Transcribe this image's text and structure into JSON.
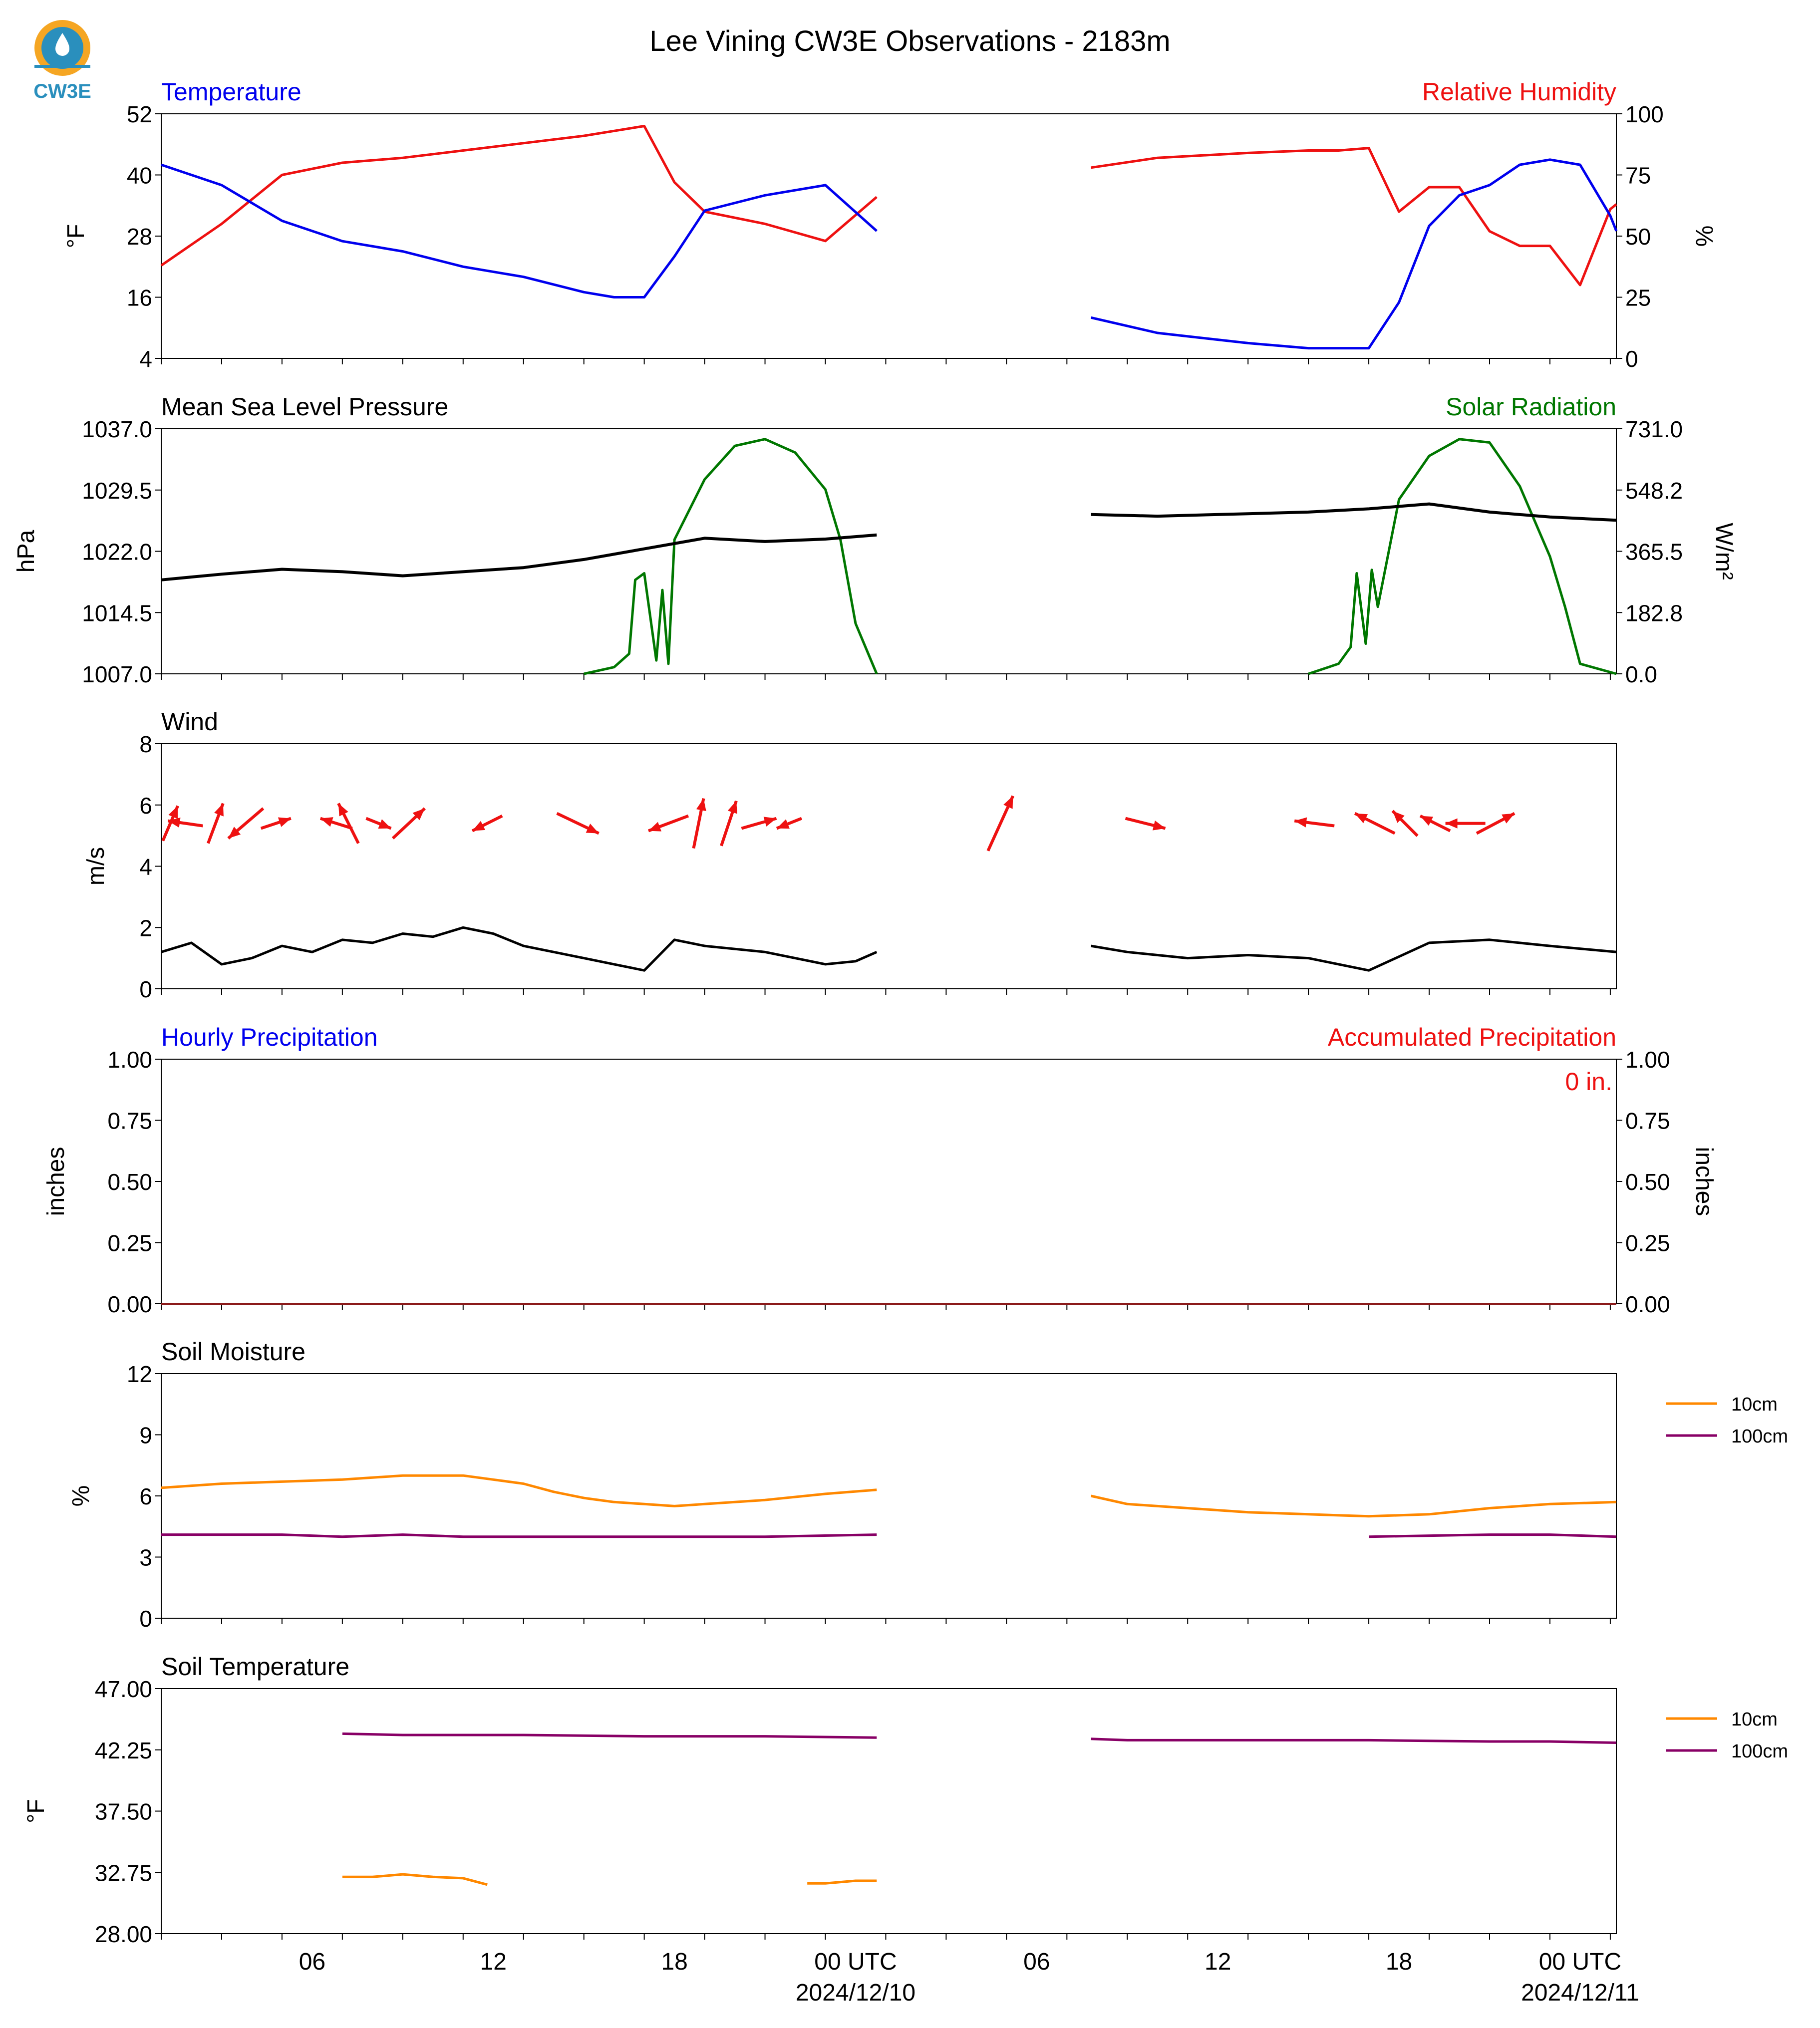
{
  "title": "Lee Vining CW3E Observations - 2183m",
  "logo_text": "CW3E",
  "x_axis": {
    "tick_labels": [
      "06",
      "12",
      "18",
      "00 UTC",
      "06",
      "12",
      "18",
      "00 UTC"
    ],
    "date_labels": [
      "2024/12/10",
      "2024/12/11"
    ]
  },
  "colors": {
    "temperature": "#0000ee",
    "humidity": "#ee1111",
    "pressure": "#000000",
    "solar": "#007700",
    "wind": "#000000",
    "wind_arrow": "#ee1111",
    "soil_10cm": "#ff8800",
    "soil_100cm": "#880066"
  },
  "chart_data": [
    {
      "type": "line",
      "title_left": "Temperature",
      "title_right": "Relative Humidity",
      "ylabel_left": "°F",
      "ylabel_right": "%",
      "ylim_left": [
        4,
        52
      ],
      "yticks_left": [
        "52",
        "40",
        "28",
        "16",
        "4"
      ],
      "ylim_right": [
        0,
        100
      ],
      "yticks_right": [
        "100",
        "75",
        "50",
        "25",
        "0"
      ],
      "x_hours": [
        0,
        2,
        4,
        6,
        8,
        10,
        12,
        14,
        15,
        16,
        17,
        18,
        20,
        22,
        23.7,
        30.8,
        33,
        36,
        38,
        39,
        40,
        41,
        42,
        43,
        44,
        45,
        46,
        47,
        48,
        48.2
      ],
      "series": [
        {
          "name": "Temperature",
          "values": [
            42,
            38,
            31,
            27,
            25,
            22,
            20,
            17,
            16,
            16,
            24,
            33,
            36,
            38,
            29,
            12,
            9,
            7,
            6,
            6,
            6,
            15,
            30,
            36,
            38,
            42,
            43,
            42,
            32,
            29
          ]
        },
        {
          "name": "Relative Humidity",
          "values": [
            38,
            55,
            75,
            80,
            82,
            85,
            88,
            91,
            93,
            95,
            72,
            60,
            55,
            48,
            66,
            78,
            82,
            84,
            85,
            85,
            86,
            60,
            70,
            70,
            52,
            46,
            46,
            30,
            61,
            63
          ]
        }
      ]
    },
    {
      "type": "line",
      "title_left": "Mean Sea Level Pressure",
      "title_right": "Solar Radiation",
      "ylabel_left": "hPa",
      "ylabel_right": "W/m²",
      "ylim_left": [
        1007.0,
        1037.0
      ],
      "yticks_left": [
        "1037.0",
        "1029.5",
        "1022.0",
        "1014.5",
        "1007.0"
      ],
      "ylim_right": [
        0.0,
        731.0
      ],
      "yticks_right": [
        "731.0",
        "548.2",
        "365.5",
        "182.8",
        "0.0"
      ],
      "pressure": {
        "name": "Mean Sea Level Pressure",
        "x_hours": [
          0,
          2,
          4,
          6,
          8,
          10,
          12,
          14,
          16,
          18,
          20,
          22,
          23.7,
          30.8,
          33,
          36,
          38,
          40,
          42,
          44,
          46,
          48.2
        ],
        "values": [
          1018.5,
          1019.2,
          1019.8,
          1019.5,
          1019.0,
          1019.5,
          1020.0,
          1021.0,
          1022.3,
          1023.6,
          1023.2,
          1023.5,
          1024.0,
          1026.5,
          1026.3,
          1026.6,
          1026.8,
          1027.2,
          1027.8,
          1026.8,
          1026.2,
          1025.8
        ]
      },
      "solar": {
        "name": "Solar Radiation",
        "x_hours": [
          0,
          14,
          15,
          15.5,
          15.7,
          16,
          16.4,
          16.6,
          16.8,
          17,
          18,
          19,
          20,
          21,
          22,
          22.5,
          23,
          23.7,
          30.8,
          38,
          39,
          39.4,
          39.6,
          39.9,
          40.1,
          40.3,
          41,
          42,
          43,
          44,
          45,
          46,
          46.5,
          47,
          48.2
        ],
        "values": [
          0,
          0,
          20,
          60,
          280,
          300,
          40,
          250,
          30,
          400,
          580,
          680,
          700,
          660,
          550,
          400,
          150,
          0,
          0,
          0,
          30,
          80,
          300,
          90,
          310,
          200,
          520,
          650,
          700,
          690,
          560,
          350,
          200,
          30,
          0
        ]
      }
    },
    {
      "type": "line",
      "title_left": "Wind",
      "ylabel_left": "m/s",
      "ylim_left": [
        0,
        8
      ],
      "yticks_left": [
        "8",
        "6",
        "4",
        "2",
        "0"
      ],
      "speed": {
        "name": "Wind",
        "x_hours": [
          0,
          1,
          2,
          3,
          4,
          5,
          6,
          7,
          8,
          9,
          10,
          11,
          12,
          13,
          14,
          15,
          16,
          17,
          18,
          19,
          20,
          21,
          22,
          23,
          23.7,
          30.8,
          32,
          34,
          36,
          38,
          40,
          42,
          44,
          46,
          48.2
        ],
        "values": [
          1.2,
          1.5,
          0.8,
          1.0,
          1.4,
          1.2,
          1.6,
          1.5,
          1.8,
          1.7,
          2.0,
          1.8,
          1.4,
          1.2,
          1.0,
          0.8,
          0.6,
          1.6,
          1.4,
          1.3,
          1.2,
          1.0,
          0.8,
          0.9,
          1.2,
          1.4,
          1.2,
          1.0,
          1.1,
          1.0,
          0.6,
          1.5,
          1.6,
          1.4,
          1.2
        ]
      },
      "arrows": {
        "x_hours": [
          0.3,
          0.8,
          1.8,
          2.8,
          3.8,
          5.8,
          6.2,
          7.2,
          8.2,
          10.8,
          13.8,
          16.8,
          17.8,
          18.8,
          19.8,
          20.8,
          27.8,
          32.6,
          38.2,
          40.2,
          41.2,
          42.2,
          43.2,
          44.2
        ],
        "u": [
          1.5,
          -3.5,
          1.5,
          -3.5,
          3.0,
          -3.2,
          -2.0,
          2.5,
          3.2,
          -3.0,
          4.2,
          -4.0,
          1.0,
          1.5,
          3.5,
          -2.5,
          2.5,
          4.0,
          -4.0,
          -4.0,
          -2.5,
          -3.0,
          -4.0,
          3.8
        ],
        "v": [
          3.5,
          0.5,
          4.0,
          -3.0,
          1.0,
          1.0,
          4.0,
          -1.0,
          3.0,
          -1.5,
          -2.0,
          -1.5,
          5.0,
          4.5,
          1.0,
          -1.0,
          5.5,
          -1.0,
          0.5,
          2.0,
          2.5,
          1.5,
          0.0,
          2.0
        ]
      }
    },
    {
      "type": "line",
      "title_left": "Hourly Precipitation",
      "title_right": "Accumulated Precipitation",
      "ylabel_left": "inches",
      "ylabel_right": "inches",
      "ylim_left": [
        0.0,
        1.0
      ],
      "yticks_left": [
        "1.00",
        "0.75",
        "0.50",
        "0.25",
        "0.00"
      ],
      "yticks_right": [
        "1.00",
        "0.75",
        "0.50",
        "0.25",
        "0.00"
      ],
      "annotation": "0 in.",
      "x_hours": [
        0,
        48.2
      ],
      "values": [
        0,
        0
      ]
    },
    {
      "type": "line",
      "title_left": "Soil Moisture",
      "ylabel_left": "%",
      "ylim_left": [
        0,
        12
      ],
      "yticks_left": [
        "12",
        "9",
        "6",
        "3",
        "0"
      ],
      "legend": [
        "10cm",
        "100cm"
      ],
      "series": [
        {
          "name": "10cm",
          "x_hours": [
            0,
            1,
            2,
            4,
            6,
            8,
            10,
            11,
            12,
            13,
            14,
            15,
            16,
            17,
            18,
            20,
            22,
            23.7,
            30.8,
            32,
            34,
            36,
            38,
            40,
            42,
            44,
            46,
            48.2
          ],
          "values": [
            6.4,
            6.5,
            6.6,
            6.7,
            6.8,
            7.0,
            7.0,
            6.8,
            6.6,
            6.2,
            5.9,
            5.7,
            5.6,
            5.5,
            5.6,
            5.8,
            6.1,
            6.3,
            6.0,
            5.6,
            5.4,
            5.2,
            5.1,
            5.0,
            5.1,
            5.4,
            5.6,
            5.7
          ]
        },
        {
          "name": "100cm",
          "x_hours": [
            0,
            4,
            6,
            8,
            10,
            12,
            16,
            20,
            23.7,
            30.8,
            40,
            44,
            46,
            48.2
          ],
          "values": [
            4.1,
            4.1,
            4.0,
            4.1,
            4.0,
            4.0,
            4.0,
            4.0,
            4.1,
            4.0,
            4.0,
            4.1,
            4.1,
            4.0
          ]
        }
      ]
    },
    {
      "type": "line",
      "title_left": "Soil Temperature",
      "ylabel_left": "°F",
      "ylim_left": [
        28.0,
        47.0
      ],
      "yticks_left": [
        "47.00",
        "42.25",
        "37.50",
        "32.75",
        "28.00"
      ],
      "legend": [
        "10cm",
        "100cm"
      ],
      "series": [
        {
          "name": "10cm",
          "x_hours": [
            0,
            6,
            7,
            8,
            9,
            10,
            10.8,
            21.4,
            22,
            23,
            23.7
          ],
          "values": [
            32.4,
            32.4,
            32.4,
            32.6,
            32.4,
            32.3,
            31.8,
            31.9,
            31.9,
            32.1,
            32.1
          ]
        },
        {
          "name": "100cm",
          "x_hours": [
            0,
            6,
            8,
            10,
            12,
            16,
            20,
            23.7,
            30.8,
            32,
            36,
            40,
            44,
            46,
            48.2
          ],
          "values": [
            43.5,
            43.5,
            43.4,
            43.4,
            43.4,
            43.3,
            43.3,
            43.2,
            43.1,
            43.0,
            43.0,
            43.0,
            42.9,
            42.9,
            42.8
          ]
        }
      ]
    }
  ]
}
